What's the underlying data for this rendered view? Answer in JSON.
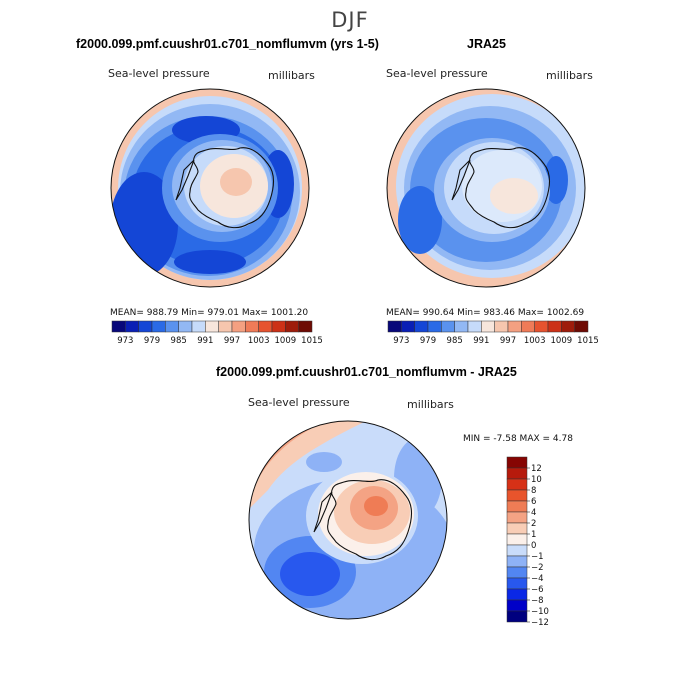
{
  "figure": {
    "title": "DJF"
  },
  "colors": {
    "abs_scale": [
      "#08087a",
      "#0a1fb5",
      "#1446d6",
      "#2a6ae6",
      "#5a92ee",
      "#92b8f4",
      "#c6dbfa",
      "#f7e6dc",
      "#f6c6ae",
      "#f4a081",
      "#ef7b58",
      "#e6532f",
      "#cc3117",
      "#9e1c0b",
      "#6e0b04"
    ],
    "diff_scale": [
      "#00007f",
      "#0000c8",
      "#0a28e6",
      "#2858ee",
      "#5286f2",
      "#8eb2f6",
      "#c9dcfa",
      "#fbf0ea",
      "#f8cdb6",
      "#f4a384",
      "#ef7c55",
      "#e8542c",
      "#d63117",
      "#b61a0c",
      "#860503"
    ]
  },
  "chart_data": [
    {
      "type": "heatmap",
      "projection": "south-polar-stereographic",
      "title": "f2000.099.pmf.cuushr01.c701_nomflumvm (yrs 1-5)",
      "left_label": "Sea-level pressure",
      "right_label": "millibars",
      "stats": {
        "mean": 988.79,
        "min": 979.01,
        "max": 1001.2
      },
      "stats_text": "MEAN= 988.79   Min= 979.01   Max= 1001.20",
      "levels": [
        973,
        976,
        979,
        982,
        985,
        988,
        991,
        994,
        997,
        1000,
        1003,
        1006,
        1009,
        1012,
        1015
      ],
      "colorbar_ticks": [
        "973",
        "979",
        "985",
        "991",
        "997",
        "1003",
        "1009",
        "1015"
      ],
      "colorbar_orientation": "horizontal"
    },
    {
      "type": "heatmap",
      "projection": "south-polar-stereographic",
      "title": "JRA25",
      "left_label": "Sea-level pressure",
      "right_label": "millibars",
      "stats": {
        "mean": 990.64,
        "min": 983.46,
        "max": 1002.69
      },
      "stats_text": "MEAN= 990.64   Min= 983.46   Max= 1002.69",
      "levels": [
        973,
        976,
        979,
        982,
        985,
        988,
        991,
        994,
        997,
        1000,
        1003,
        1006,
        1009,
        1012,
        1015
      ],
      "colorbar_ticks": [
        "973",
        "979",
        "985",
        "991",
        "997",
        "1003",
        "1009",
        "1015"
      ],
      "colorbar_orientation": "horizontal"
    },
    {
      "type": "heatmap",
      "projection": "south-polar-stereographic",
      "title": "f2000.099.pmf.cuushr01.c701_nomflumvm - JRA25",
      "left_label": "Sea-level pressure",
      "right_label": "millibars",
      "stats": {
        "min": -7.58,
        "max": 4.78
      },
      "stats_text": "MIN =   -7.58 MAX =    4.78",
      "levels": [
        -12,
        -10,
        -8,
        -6,
        -4,
        -2,
        -1,
        0,
        1,
        2,
        4,
        6,
        8,
        10,
        12
      ],
      "colorbar_ticks": [
        "12",
        "10",
        "8",
        "6",
        "4",
        "2",
        "1",
        "0",
        "−1",
        "−2",
        "−4",
        "−6",
        "−8",
        "−10",
        "−12"
      ],
      "colorbar_orientation": "vertical"
    }
  ]
}
